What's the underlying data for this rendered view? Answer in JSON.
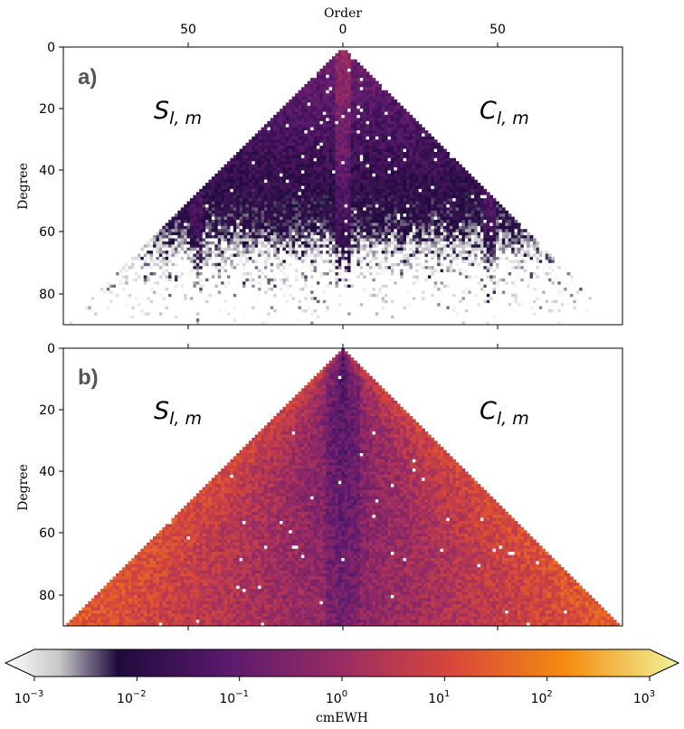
{
  "chart_data": [
    {
      "panel": "a)",
      "type": "heatmap",
      "xlabel": "Order",
      "ylabel": "Degree",
      "x_tick_labels": [
        "50",
        "0",
        "50"
      ],
      "y_tick_labels": [
        "0",
        "20",
        "40",
        "60",
        "80"
      ],
      "left_label": "S",
      "left_sub": "l, m",
      "right_label": "C",
      "right_sub": "l, m",
      "degree_range": [
        0,
        90
      ],
      "order_range": [
        -90,
        90
      ],
      "description_of_values": {
        "low_degree_log10": -0.7,
        "trend_per_degree": -0.025,
        "central_band_order_abs_max": 3,
        "high_order_band_log10": -1.0
      }
    },
    {
      "panel": "b)",
      "type": "heatmap",
      "xlabel": "",
      "ylabel": "Degree",
      "x_tick_labels": [],
      "y_tick_labels": [
        "0",
        "20",
        "40",
        "60",
        "80"
      ],
      "left_label": "S",
      "left_sub": "l, m",
      "right_label": "C",
      "right_sub": "l, m",
      "degree_range": [
        0,
        90
      ],
      "order_range": [
        -90,
        90
      ],
      "description_of_values": {
        "center_log10": -0.9,
        "edge_log10": 1.2
      }
    }
  ],
  "colorbar": {
    "label": "cmEWH",
    "scale": "log",
    "range_log10": [
      -3,
      3
    ],
    "tick_labels": [
      {
        "base": "10",
        "exp": "−3"
      },
      {
        "base": "10",
        "exp": "−2"
      },
      {
        "base": "10",
        "exp": "−1"
      },
      {
        "base": "10",
        "exp": "0"
      },
      {
        "base": "10",
        "exp": "1"
      },
      {
        "base": "10",
        "exp": "2"
      },
      {
        "base": "10",
        "exp": "3"
      }
    ],
    "colors": [
      "#ffffff",
      "#1e0a3c",
      "#5c1a6e",
      "#9a2c63",
      "#d9483a",
      "#f48c0f",
      "#f1f49a"
    ]
  }
}
